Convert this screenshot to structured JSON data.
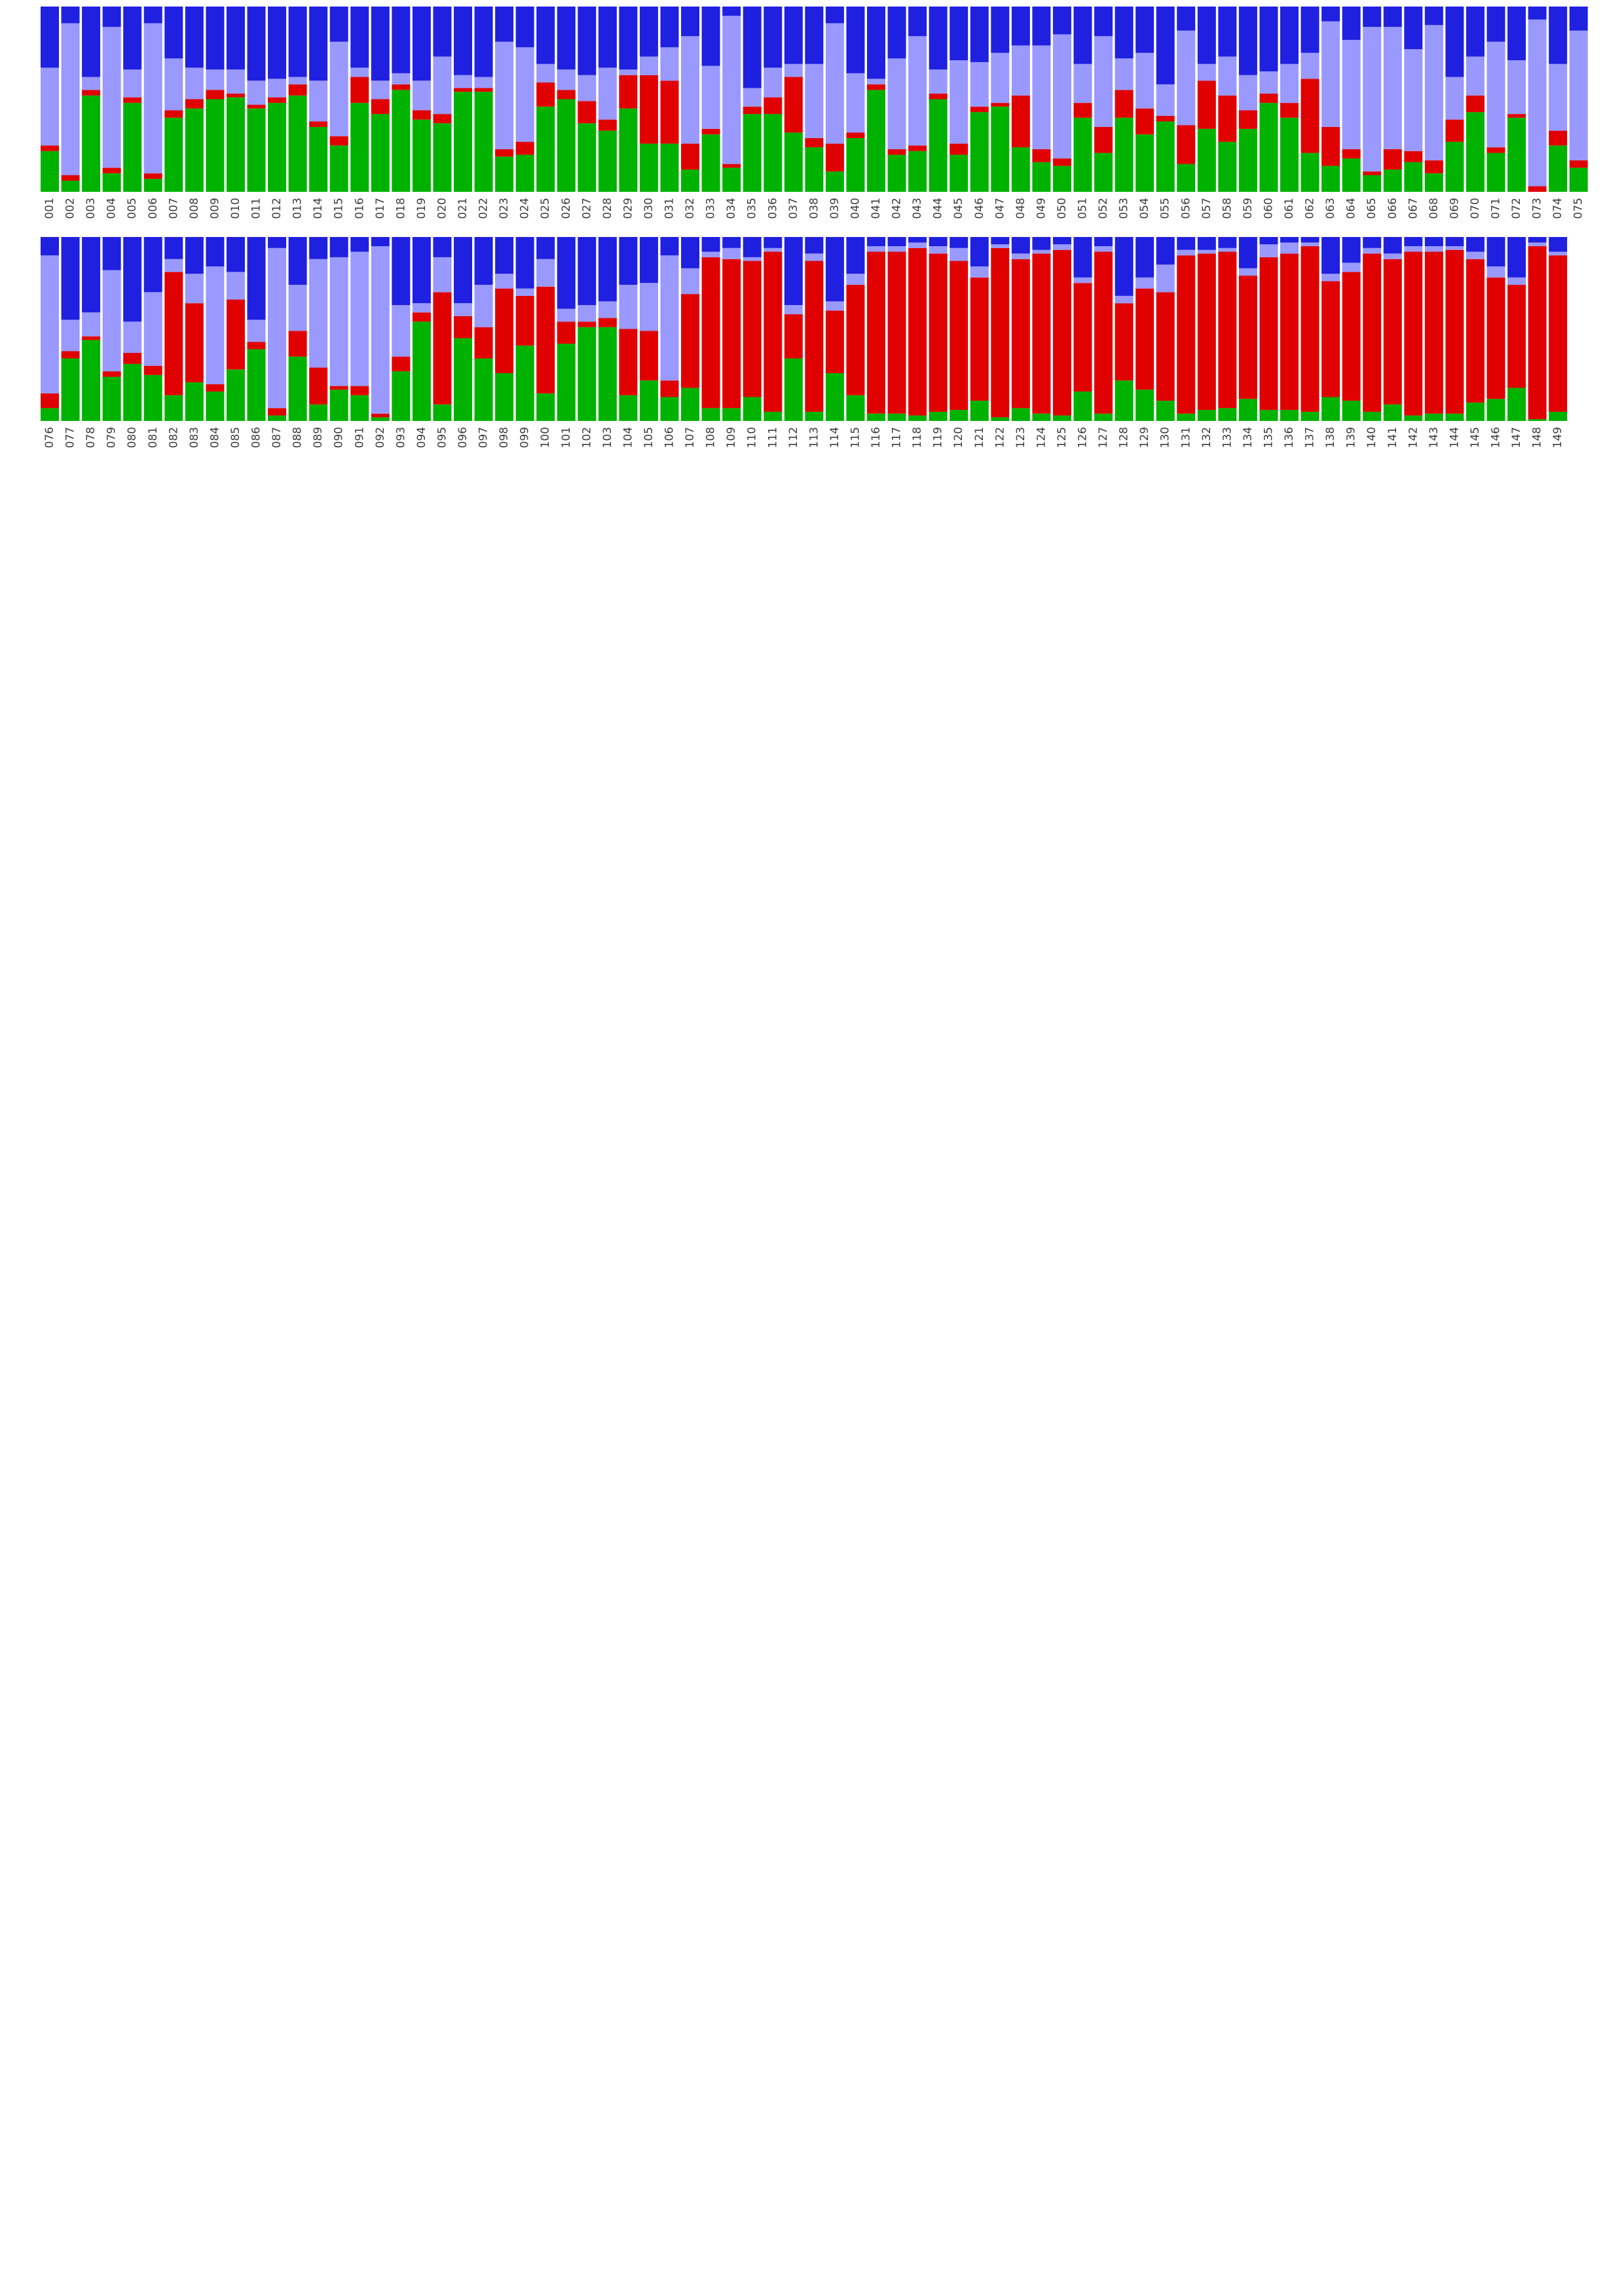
{
  "chart_data": [
    {
      "type": "bar",
      "stacked": true,
      "normalized": true,
      "ylim": [
        0,
        1
      ],
      "grid": false,
      "legend": "none",
      "categories": [
        "001",
        "002",
        "003",
        "004",
        "005",
        "006",
        "007",
        "008",
        "009",
        "010",
        "011",
        "012",
        "013",
        "014",
        "015",
        "016",
        "017",
        "018",
        "019",
        "020",
        "021",
        "022",
        "023",
        "024",
        "025",
        "026",
        "027",
        "028",
        "029",
        "030",
        "031",
        "032",
        "033",
        "034",
        "035",
        "036",
        "037",
        "038",
        "039",
        "040",
        "041",
        "042",
        "043",
        "044",
        "045",
        "046",
        "047",
        "048",
        "049",
        "050",
        "051",
        "052",
        "053",
        "054",
        "055",
        "056",
        "057",
        "058",
        "059",
        "060",
        "061",
        "062",
        "063",
        "064",
        "065",
        "066",
        "067",
        "068",
        "069",
        "070",
        "071",
        "072",
        "073",
        "074",
        "075"
      ],
      "series": [
        {
          "color": "#00b200",
          "values": [
            0.22,
            0.06,
            0.52,
            0.1,
            0.48,
            0.07,
            0.4,
            0.45,
            0.5,
            0.51,
            0.45,
            0.48,
            0.52,
            0.35,
            0.25,
            0.48,
            0.42,
            0.55,
            0.39,
            0.37,
            0.54,
            0.54,
            0.19,
            0.2,
            0.46,
            0.5,
            0.37,
            0.33,
            0.45,
            0.26,
            0.26,
            0.12,
            0.31,
            0.13,
            0.42,
            0.42,
            0.32,
            0.24,
            0.11,
            0.29,
            0.55,
            0.2,
            0.22,
            0.5,
            0.2,
            0.43,
            0.46,
            0.24,
            0.16,
            0.14,
            0.4,
            0.21,
            0.4,
            0.31,
            0.38,
            0.15,
            0.34,
            0.27,
            0.34,
            0.48,
            0.4,
            0.21,
            0.14,
            0.18,
            0.09,
            0.12,
            0.16,
            0.1,
            0.27,
            0.43,
            0.21,
            0.4,
            0.0,
            0.25,
            0.13
          ]
        },
        {
          "color": "#e00000",
          "values": [
            0.03,
            0.03,
            0.03,
            0.03,
            0.03,
            0.03,
            0.04,
            0.05,
            0.05,
            0.02,
            0.02,
            0.03,
            0.06,
            0.03,
            0.05,
            0.14,
            0.08,
            0.03,
            0.05,
            0.05,
            0.02,
            0.02,
            0.04,
            0.07,
            0.13,
            0.05,
            0.12,
            0.06,
            0.18,
            0.37,
            0.34,
            0.14,
            0.03,
            0.02,
            0.04,
            0.09,
            0.3,
            0.05,
            0.15,
            0.03,
            0.03,
            0.03,
            0.03,
            0.03,
            0.06,
            0.03,
            0.02,
            0.28,
            0.07,
            0.04,
            0.08,
            0.14,
            0.15,
            0.14,
            0.03,
            0.21,
            0.26,
            0.25,
            0.1,
            0.05,
            0.08,
            0.4,
            0.21,
            0.05,
            0.02,
            0.11,
            0.06,
            0.07,
            0.12,
            0.09,
            0.03,
            0.02,
            0.03,
            0.08,
            0.04
          ]
        },
        {
          "color": "#9999ff",
          "values": [
            0.42,
            0.82,
            0.07,
            0.76,
            0.15,
            0.81,
            0.28,
            0.17,
            0.11,
            0.13,
            0.13,
            0.1,
            0.04,
            0.22,
            0.51,
            0.05,
            0.1,
            0.06,
            0.16,
            0.31,
            0.07,
            0.06,
            0.58,
            0.51,
            0.1,
            0.11,
            0.14,
            0.28,
            0.03,
            0.1,
            0.18,
            0.58,
            0.34,
            0.8,
            0.1,
            0.16,
            0.07,
            0.4,
            0.65,
            0.32,
            0.03,
            0.49,
            0.59,
            0.13,
            0.45,
            0.24,
            0.27,
            0.27,
            0.56,
            0.67,
            0.21,
            0.49,
            0.17,
            0.3,
            0.17,
            0.51,
            0.09,
            0.21,
            0.19,
            0.12,
            0.21,
            0.14,
            0.57,
            0.59,
            0.78,
            0.66,
            0.55,
            0.73,
            0.23,
            0.21,
            0.57,
            0.29,
            0.9,
            0.36,
            0.7
          ]
        },
        {
          "color": "#2020e0",
          "values": [
            0.33,
            0.09,
            0.38,
            0.11,
            0.34,
            0.09,
            0.28,
            0.33,
            0.34,
            0.34,
            0.4,
            0.39,
            0.38,
            0.4,
            0.19,
            0.33,
            0.4,
            0.36,
            0.4,
            0.27,
            0.37,
            0.38,
            0.19,
            0.22,
            0.31,
            0.34,
            0.37,
            0.33,
            0.34,
            0.27,
            0.22,
            0.16,
            0.32,
            0.05,
            0.44,
            0.33,
            0.31,
            0.31,
            0.09,
            0.36,
            0.39,
            0.28,
            0.16,
            0.34,
            0.29,
            0.3,
            0.25,
            0.21,
            0.21,
            0.15,
            0.31,
            0.16,
            0.28,
            0.25,
            0.42,
            0.13,
            0.31,
            0.27,
            0.37,
            0.35,
            0.31,
            0.25,
            0.08,
            0.18,
            0.11,
            0.11,
            0.23,
            0.1,
            0.38,
            0.27,
            0.19,
            0.29,
            0.07,
            0.31,
            0.13
          ]
        }
      ]
    },
    {
      "type": "bar",
      "stacked": true,
      "normalized": true,
      "ylim": [
        0,
        1
      ],
      "grid": false,
      "legend": "none",
      "categories": [
        "076",
        "077",
        "078",
        "079",
        "080",
        "081",
        "082",
        "083",
        "084",
        "085",
        "086",
        "087",
        "088",
        "089",
        "090",
        "091",
        "092",
        "093",
        "094",
        "095",
        "096",
        "097",
        "098",
        "099",
        "100",
        "101",
        "102",
        "103",
        "104",
        "105",
        "106",
        "107",
        "108",
        "109",
        "110",
        "111",
        "112",
        "113",
        "114",
        "115",
        "116",
        "117",
        "118",
        "119",
        "120",
        "121",
        "122",
        "123",
        "124",
        "125",
        "126",
        "127",
        "128",
        "129",
        "130",
        "131",
        "132",
        "133",
        "134",
        "135",
        "136",
        "137",
        "138",
        "139",
        "140",
        "141",
        "142",
        "143",
        "144",
        "145",
        "146",
        "147",
        "148",
        "149"
      ],
      "series": [
        {
          "color": "#00b200",
          "values": [
            0.07,
            0.34,
            0.44,
            0.24,
            0.31,
            0.25,
            0.14,
            0.21,
            0.16,
            0.28,
            0.39,
            0.03,
            0.35,
            0.09,
            0.17,
            0.14,
            0.02,
            0.27,
            0.54,
            0.09,
            0.45,
            0.34,
            0.26,
            0.41,
            0.15,
            0.42,
            0.51,
            0.51,
            0.14,
            0.22,
            0.13,
            0.18,
            0.07,
            0.07,
            0.13,
            0.05,
            0.34,
            0.05,
            0.26,
            0.14,
            0.04,
            0.04,
            0.03,
            0.05,
            0.06,
            0.11,
            0.02,
            0.07,
            0.04,
            0.03,
            0.16,
            0.04,
            0.22,
            0.17,
            0.11,
            0.04,
            0.06,
            0.07,
            0.12,
            0.06,
            0.06,
            0.05,
            0.13,
            0.11,
            0.05,
            0.09,
            0.03,
            0.04,
            0.04,
            0.1,
            0.12,
            0.18,
            0.01,
            0.05
          ]
        },
        {
          "color": "#e00000",
          "values": [
            0.08,
            0.04,
            0.02,
            0.03,
            0.06,
            0.05,
            0.67,
            0.43,
            0.04,
            0.38,
            0.04,
            0.04,
            0.14,
            0.2,
            0.02,
            0.05,
            0.02,
            0.08,
            0.05,
            0.61,
            0.12,
            0.17,
            0.46,
            0.27,
            0.58,
            0.12,
            0.03,
            0.05,
            0.36,
            0.27,
            0.09,
            0.51,
            0.82,
            0.81,
            0.74,
            0.87,
            0.24,
            0.82,
            0.34,
            0.6,
            0.88,
            0.88,
            0.91,
            0.86,
            0.81,
            0.67,
            0.92,
            0.81,
            0.87,
            0.9,
            0.59,
            0.88,
            0.42,
            0.55,
            0.59,
            0.86,
            0.85,
            0.85,
            0.67,
            0.83,
            0.85,
            0.9,
            0.63,
            0.7,
            0.86,
            0.79,
            0.89,
            0.88,
            0.89,
            0.78,
            0.66,
            0.56,
            0.94,
            0.85
          ]
        },
        {
          "color": "#9999ff",
          "values": [
            0.75,
            0.17,
            0.13,
            0.55,
            0.17,
            0.4,
            0.07,
            0.16,
            0.64,
            0.15,
            0.12,
            0.87,
            0.25,
            0.59,
            0.7,
            0.73,
            0.91,
            0.28,
            0.05,
            0.19,
            0.07,
            0.23,
            0.08,
            0.04,
            0.15,
            0.07,
            0.09,
            0.09,
            0.24,
            0.26,
            0.68,
            0.14,
            0.03,
            0.06,
            0.02,
            0.02,
            0.05,
            0.04,
            0.05,
            0.06,
            0.03,
            0.03,
            0.03,
            0.04,
            0.07,
            0.06,
            0.02,
            0.03,
            0.02,
            0.03,
            0.03,
            0.03,
            0.04,
            0.06,
            0.15,
            0.03,
            0.02,
            0.02,
            0.04,
            0.07,
            0.06,
            0.02,
            0.04,
            0.05,
            0.03,
            0.03,
            0.03,
            0.03,
            0.02,
            0.04,
            0.06,
            0.04,
            0.02,
            0.02
          ]
        },
        {
          "color": "#2020e0",
          "values": [
            0.1,
            0.45,
            0.41,
            0.18,
            0.46,
            0.3,
            0.12,
            0.2,
            0.16,
            0.19,
            0.45,
            0.06,
            0.26,
            0.12,
            0.11,
            0.08,
            0.05,
            0.37,
            0.36,
            0.11,
            0.36,
            0.26,
            0.2,
            0.28,
            0.12,
            0.39,
            0.37,
            0.35,
            0.26,
            0.25,
            0.1,
            0.17,
            0.08,
            0.06,
            0.11,
            0.06,
            0.37,
            0.09,
            0.35,
            0.2,
            0.05,
            0.05,
            0.03,
            0.05,
            0.06,
            0.16,
            0.04,
            0.09,
            0.07,
            0.04,
            0.22,
            0.05,
            0.32,
            0.22,
            0.15,
            0.07,
            0.07,
            0.06,
            0.17,
            0.04,
            0.03,
            0.03,
            0.2,
            0.14,
            0.06,
            0.09,
            0.05,
            0.05,
            0.05,
            0.08,
            0.16,
            0.22,
            0.03,
            0.08
          ]
        }
      ]
    }
  ]
}
